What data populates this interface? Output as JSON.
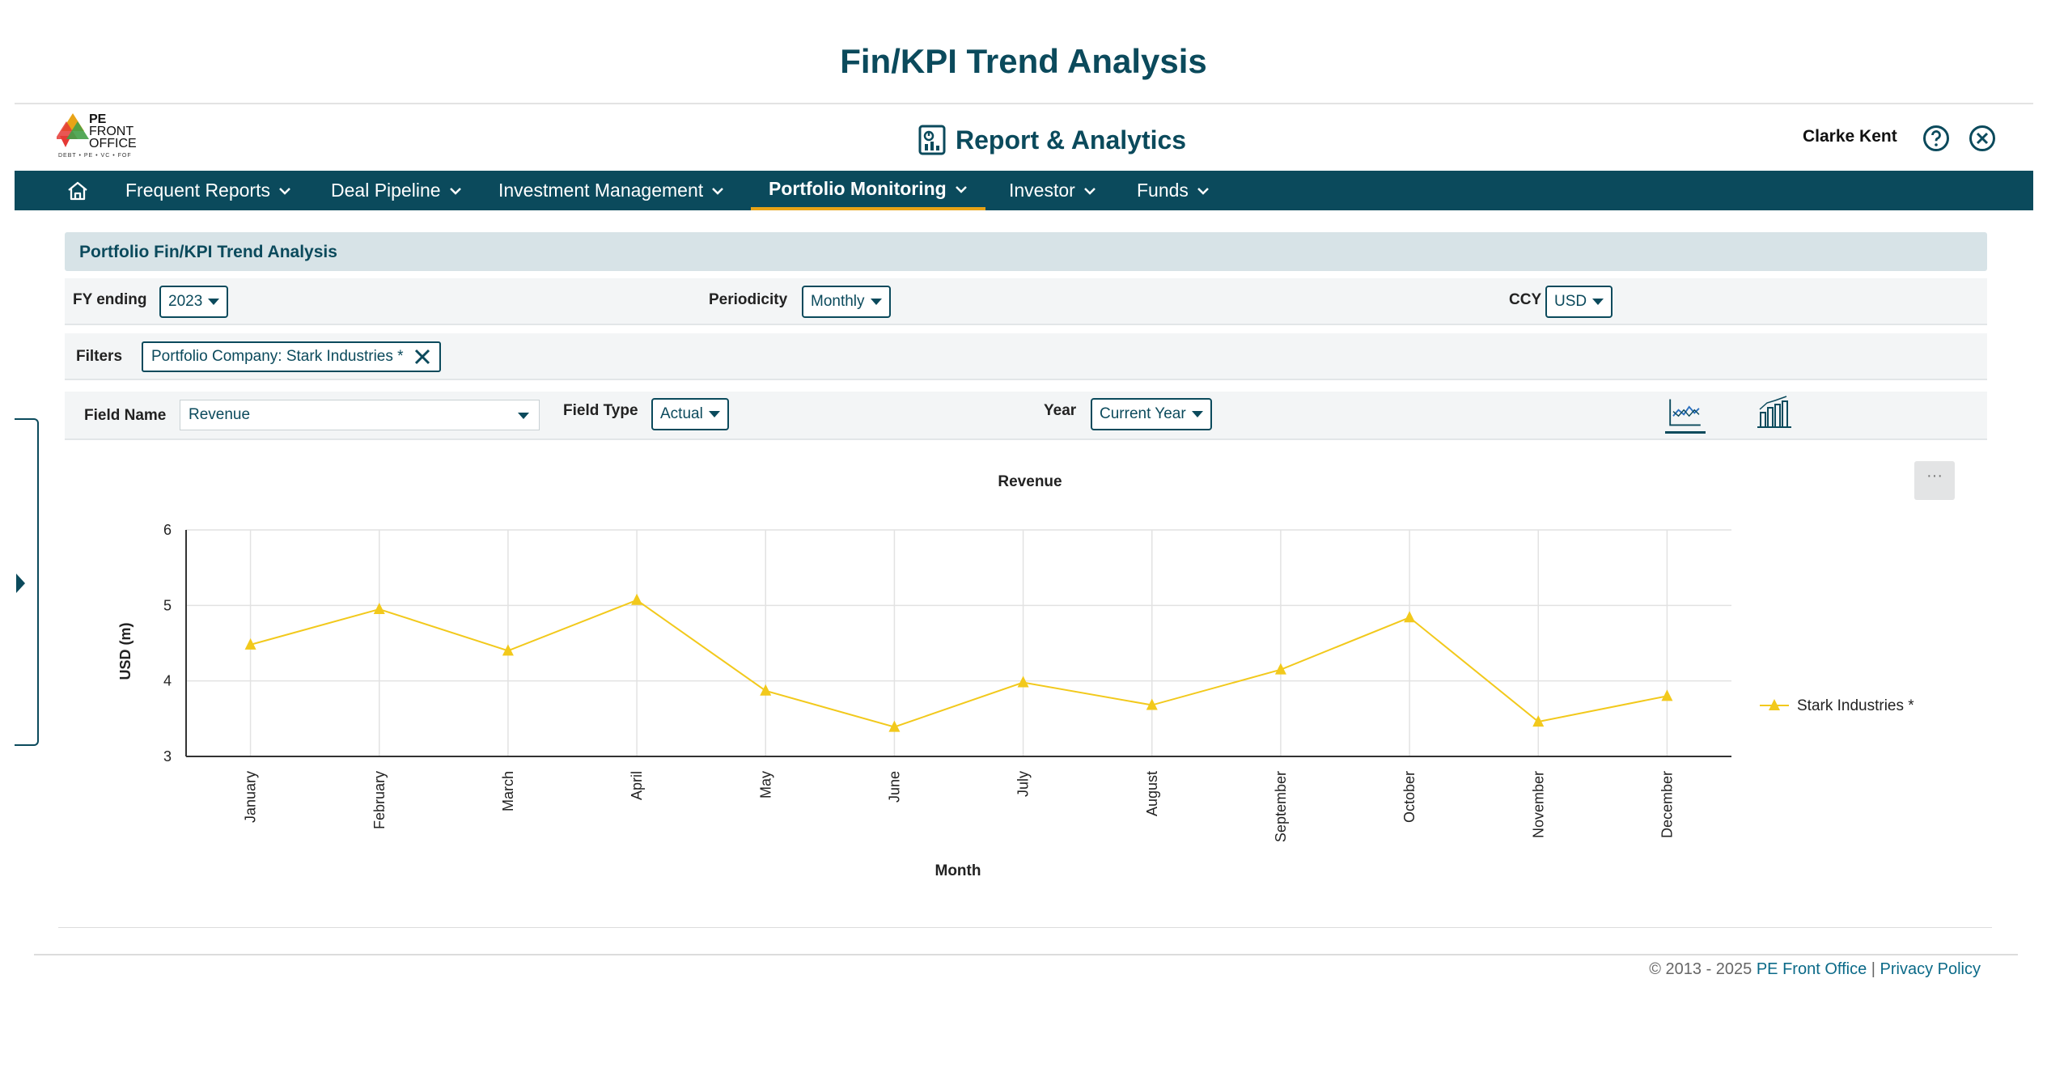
{
  "page_title": "Fin/KPI Trend Analysis",
  "logo": {
    "text_line1": "PE",
    "text_line2": "FRONT",
    "text_line3": "OFFICE",
    "sub": "DEBT • PE • VC • FOF"
  },
  "app": {
    "title": "Report & Analytics"
  },
  "user": {
    "name": "Clarke Kent"
  },
  "nav": {
    "items": [
      {
        "label": "Frequent Reports",
        "active": false
      },
      {
        "label": "Deal Pipeline",
        "active": false
      },
      {
        "label": "Investment Management",
        "active": false
      },
      {
        "label": "Portfolio Monitoring",
        "active": true
      },
      {
        "label": "Investor",
        "active": false
      },
      {
        "label": "Funds",
        "active": false
      }
    ]
  },
  "section": {
    "title": "Portfolio Fin/KPI Trend Analysis"
  },
  "settings": {
    "fy_label": "FY ending",
    "fy_value": "2023",
    "periodicity_label": "Periodicity",
    "periodicity_value": "Monthly",
    "ccy_label": "CCY",
    "ccy_value": "USD"
  },
  "filters": {
    "label": "Filters",
    "chip": "Portfolio Company: Stark Industries *"
  },
  "fields": {
    "field_name_label": "Field Name",
    "field_name_value": "Revenue",
    "field_type_label": "Field Type",
    "field_type_value": "Actual",
    "year_label": "Year",
    "year_value": "Current Year"
  },
  "more_label": "···",
  "colors": {
    "brand": "#0b4a5c",
    "accent": "#e8a317",
    "series": "#f2c91c"
  },
  "chart_data": {
    "type": "line",
    "title": "Revenue",
    "xlabel": "Month",
    "ylabel": "USD (m)",
    "ylim": [
      3,
      6
    ],
    "yticks": [
      3,
      4,
      5,
      6
    ],
    "grid": true,
    "legend_position": "right",
    "categories": [
      "January",
      "February",
      "March",
      "April",
      "May",
      "June",
      "July",
      "August",
      "September",
      "October",
      "November",
      "December"
    ],
    "series": [
      {
        "name": "Stark Industries *",
        "marker": "triangle",
        "values": [
          4.48,
          4.95,
          4.4,
          5.07,
          3.87,
          3.39,
          3.98,
          3.68,
          4.15,
          4.84,
          3.46,
          3.8
        ]
      }
    ]
  },
  "footer": {
    "copyright": "© 2013 - 2025 ",
    "company": "PE Front Office",
    "separator": " | ",
    "privacy": "Privacy Policy"
  }
}
